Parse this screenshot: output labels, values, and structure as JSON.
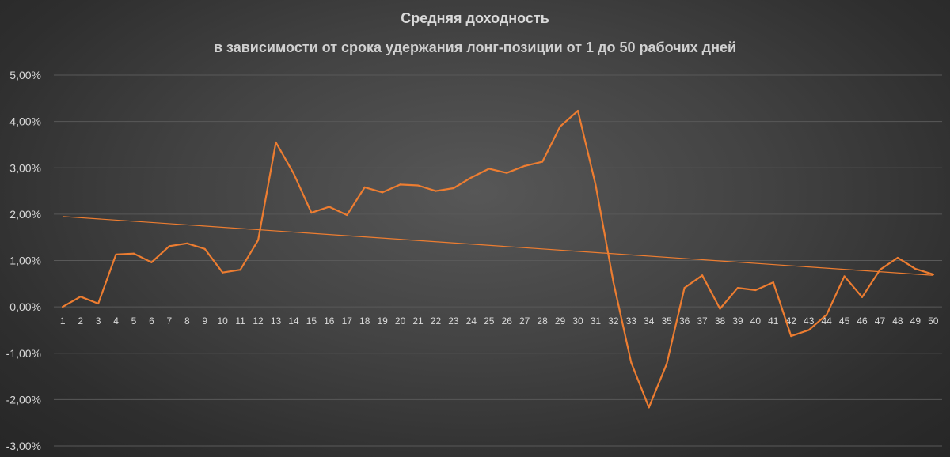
{
  "chart_data": {
    "type": "line",
    "title": "Средняя доходность",
    "subtitle": "в зависимости от срока удержания лонг-позиции от 1 до 50 рабочих дней",
    "x": [
      1,
      2,
      3,
      4,
      5,
      6,
      7,
      8,
      9,
      10,
      11,
      12,
      13,
      14,
      15,
      16,
      17,
      18,
      19,
      20,
      21,
      22,
      23,
      24,
      25,
      26,
      27,
      28,
      29,
      30,
      31,
      32,
      33,
      34,
      35,
      36,
      37,
      38,
      39,
      40,
      41,
      42,
      43,
      44,
      45,
      46,
      47,
      48,
      49,
      50
    ],
    "series": [
      {
        "values": [
          0.0,
          0.22,
          0.07,
          1.13,
          1.15,
          0.96,
          1.31,
          1.37,
          1.25,
          0.74,
          0.8,
          1.44,
          3.55,
          2.88,
          2.03,
          2.16,
          1.98,
          2.58,
          2.47,
          2.64,
          2.62,
          2.5,
          2.56,
          2.79,
          2.98,
          2.89,
          3.04,
          3.13,
          3.89,
          4.23,
          2.63,
          0.53,
          -1.2,
          -2.17,
          -1.23,
          0.41,
          0.68,
          -0.04,
          0.41,
          0.36,
          0.53,
          -0.63,
          -0.5,
          -0.17,
          0.66,
          0.21,
          0.8,
          1.06,
          0.82,
          0.7
        ],
        "color": "#ed7d31"
      }
    ],
    "trendline": {
      "type": "linear",
      "start": 1.95,
      "end": 0.68,
      "color": "#ed7d31"
    },
    "ylim": [
      -3,
      5
    ],
    "yticks": [
      "5,00%",
      "4,00%",
      "3,00%",
      "2,00%",
      "1,00%",
      "0,00%",
      "-1,00%",
      "-2,00%",
      "-3,00%"
    ],
    "ytick_values": [
      5,
      4,
      3,
      2,
      1,
      0,
      -1,
      -2,
      -3
    ],
    "grid": true,
    "legend": "none",
    "gridline_color": "#595959",
    "label_color": "#d9d9d9"
  }
}
